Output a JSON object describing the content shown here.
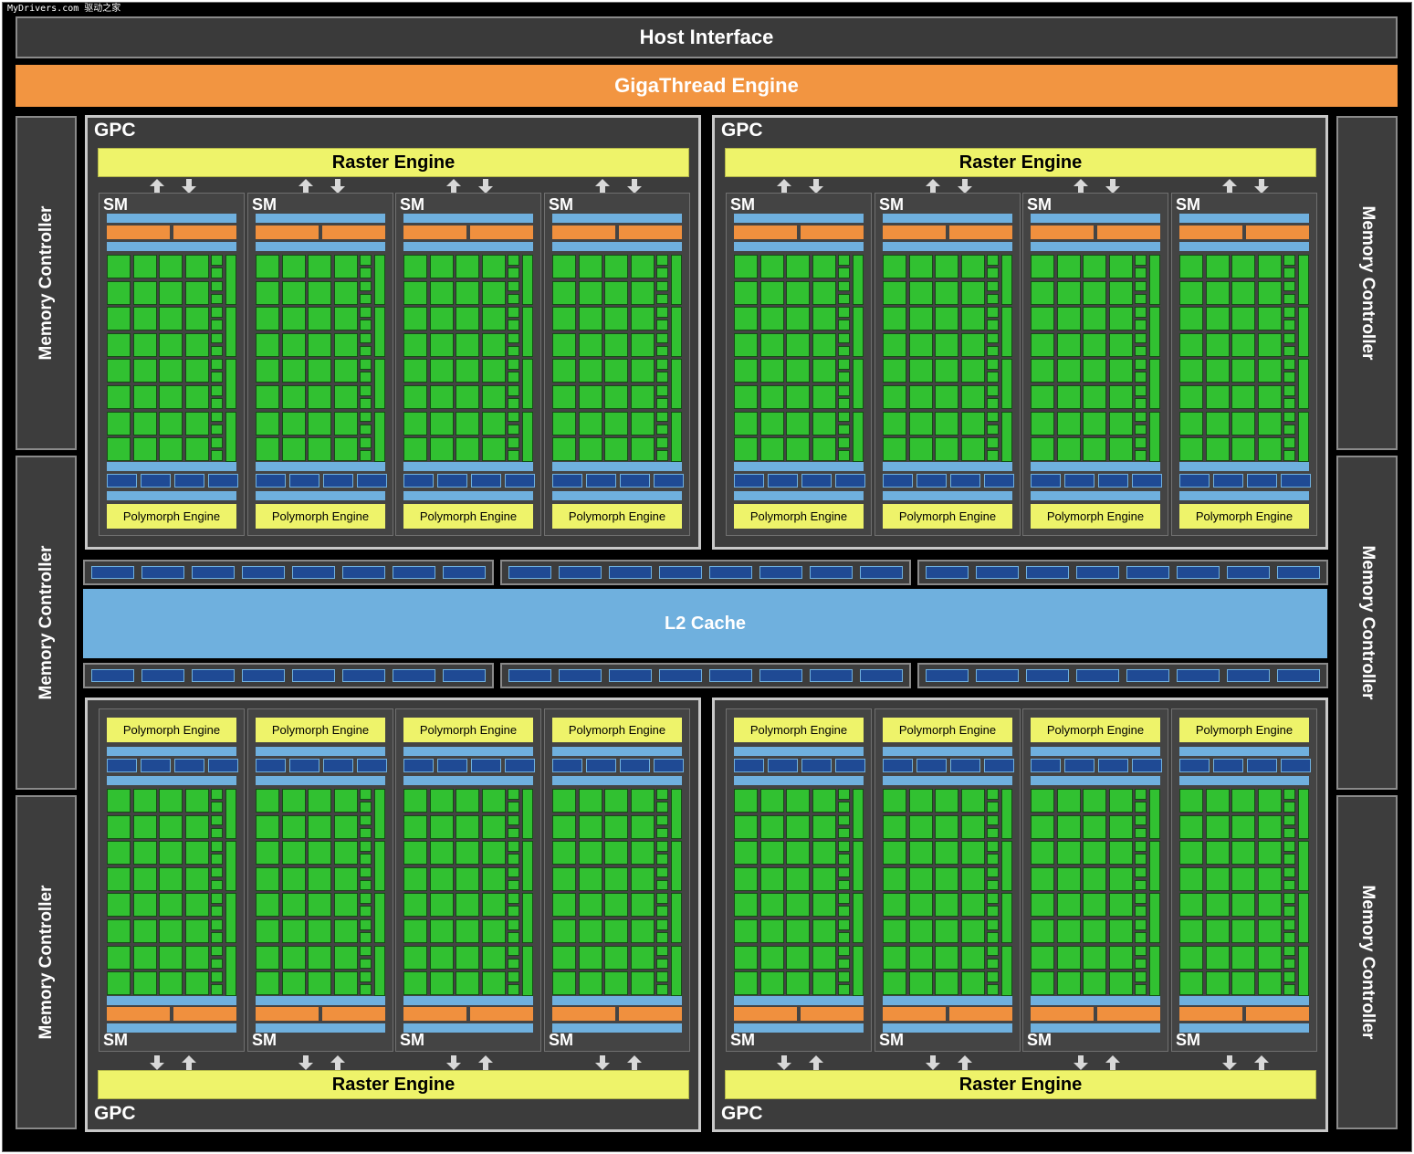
{
  "watermark": "MyDrivers.com 驱动之家",
  "host_interface": "Host Interface",
  "gigathread_engine": "GigaThread Engine",
  "l2_cache": "L2 Cache",
  "memory_controller_label": "Memory Controller",
  "gpc_label": "GPC",
  "raster_engine_label": "Raster Engine",
  "sm_label": "SM",
  "polymorph_engine_label": "Polymorph Engine",
  "gpc_count": 4,
  "sm_per_gpc": 4,
  "memory_controller_count": 6,
  "colors": {
    "background": "#000000",
    "gigathread": "#f29541",
    "raster": "#eef36a",
    "l2": "#6fb0de",
    "core": "#31c131",
    "unit": "#1f4a94",
    "register": "#f0903e"
  }
}
